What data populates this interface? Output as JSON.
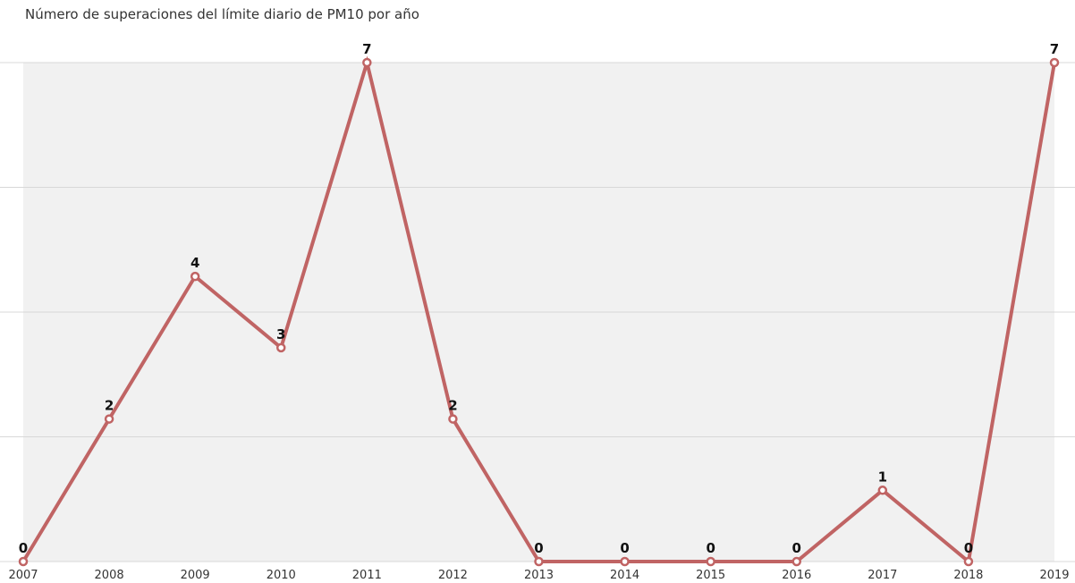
{
  "chart_data": {
    "type": "line",
    "title": "Número de superaciones  del límite diario de  PM10 por año",
    "xlabel": "",
    "ylabel": "",
    "categories": [
      "2007",
      "2008",
      "2009",
      "2010",
      "2011",
      "2012",
      "2013",
      "2014",
      "2015",
      "2016",
      "2017",
      "2018",
      "2019"
    ],
    "series": [
      {
        "values": [
          0,
          2,
          4,
          3,
          7,
          2,
          0,
          0,
          0,
          0,
          1,
          0,
          7
        ]
      }
    ],
    "ylim": [
      0,
      7
    ],
    "grid": true,
    "colors": {
      "line": "#c06464",
      "marker_fill": "#ffffff",
      "plot_background": "#f1f1f1",
      "grid": "#d8d8d8"
    }
  }
}
